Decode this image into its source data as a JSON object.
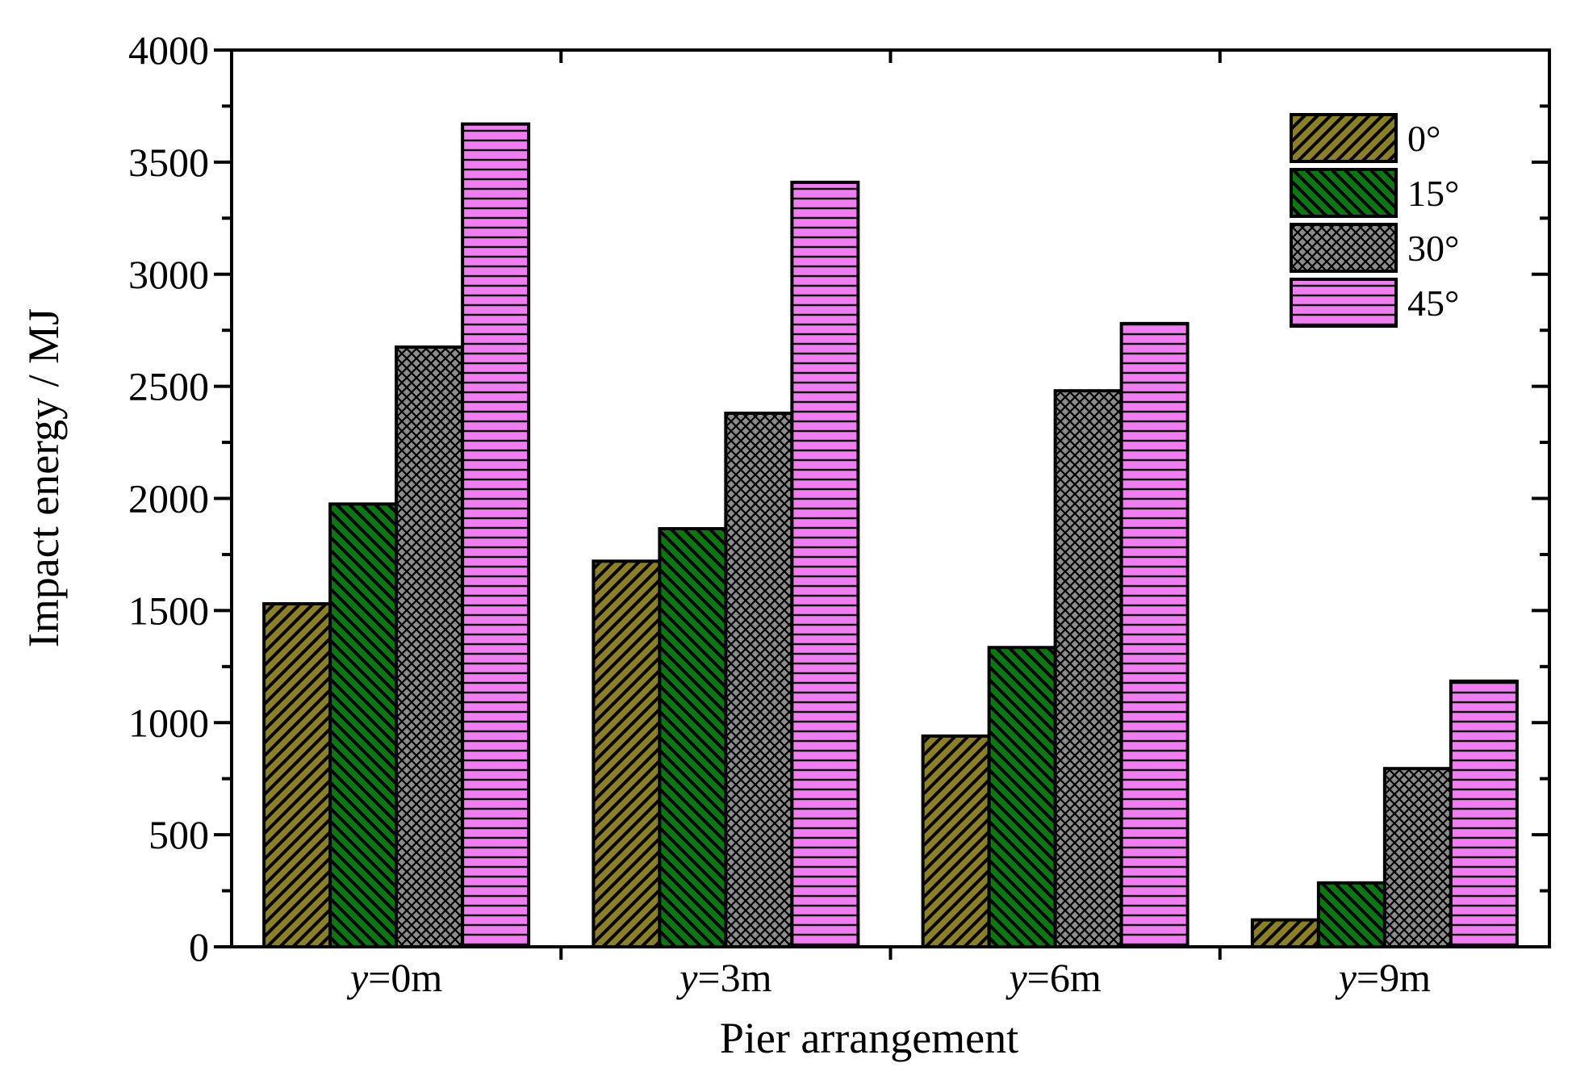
{
  "chart_data": {
    "type": "bar",
    "categories": [
      "y=0m",
      "y=3m",
      "y=6m",
      "y=9m"
    ],
    "category_labels": [
      {
        "var": "y",
        "rest": "=0m"
      },
      {
        "var": "y",
        "rest": "=3m"
      },
      {
        "var": "y",
        "rest": "=6m"
      },
      {
        "var": "y",
        "rest": "=9m"
      }
    ],
    "series": [
      {
        "name": "0°",
        "values": [
          1530,
          1720,
          940,
          120
        ],
        "color": "#8b8022",
        "pattern": "diag-right"
      },
      {
        "name": "15°",
        "values": [
          1975,
          1865,
          1335,
          285
        ],
        "color": "#0a7a10",
        "pattern": "diag-left"
      },
      {
        "name": "30°",
        "values": [
          2675,
          2380,
          2480,
          795
        ],
        "color": "#8c8c8c",
        "pattern": "crosshatch"
      },
      {
        "name": "45°",
        "values": [
          3670,
          3410,
          2780,
          1185
        ],
        "color": "#f27cf2",
        "pattern": "horizontal"
      }
    ],
    "title": "",
    "xlabel": "Pier arrangement",
    "ylabel": "Impact energy / MJ",
    "ylim": [
      0,
      4000
    ],
    "yticks": [
      0,
      500,
      1000,
      1500,
      2000,
      2500,
      3000,
      3500,
      4000
    ],
    "legend_position": "top-right"
  }
}
